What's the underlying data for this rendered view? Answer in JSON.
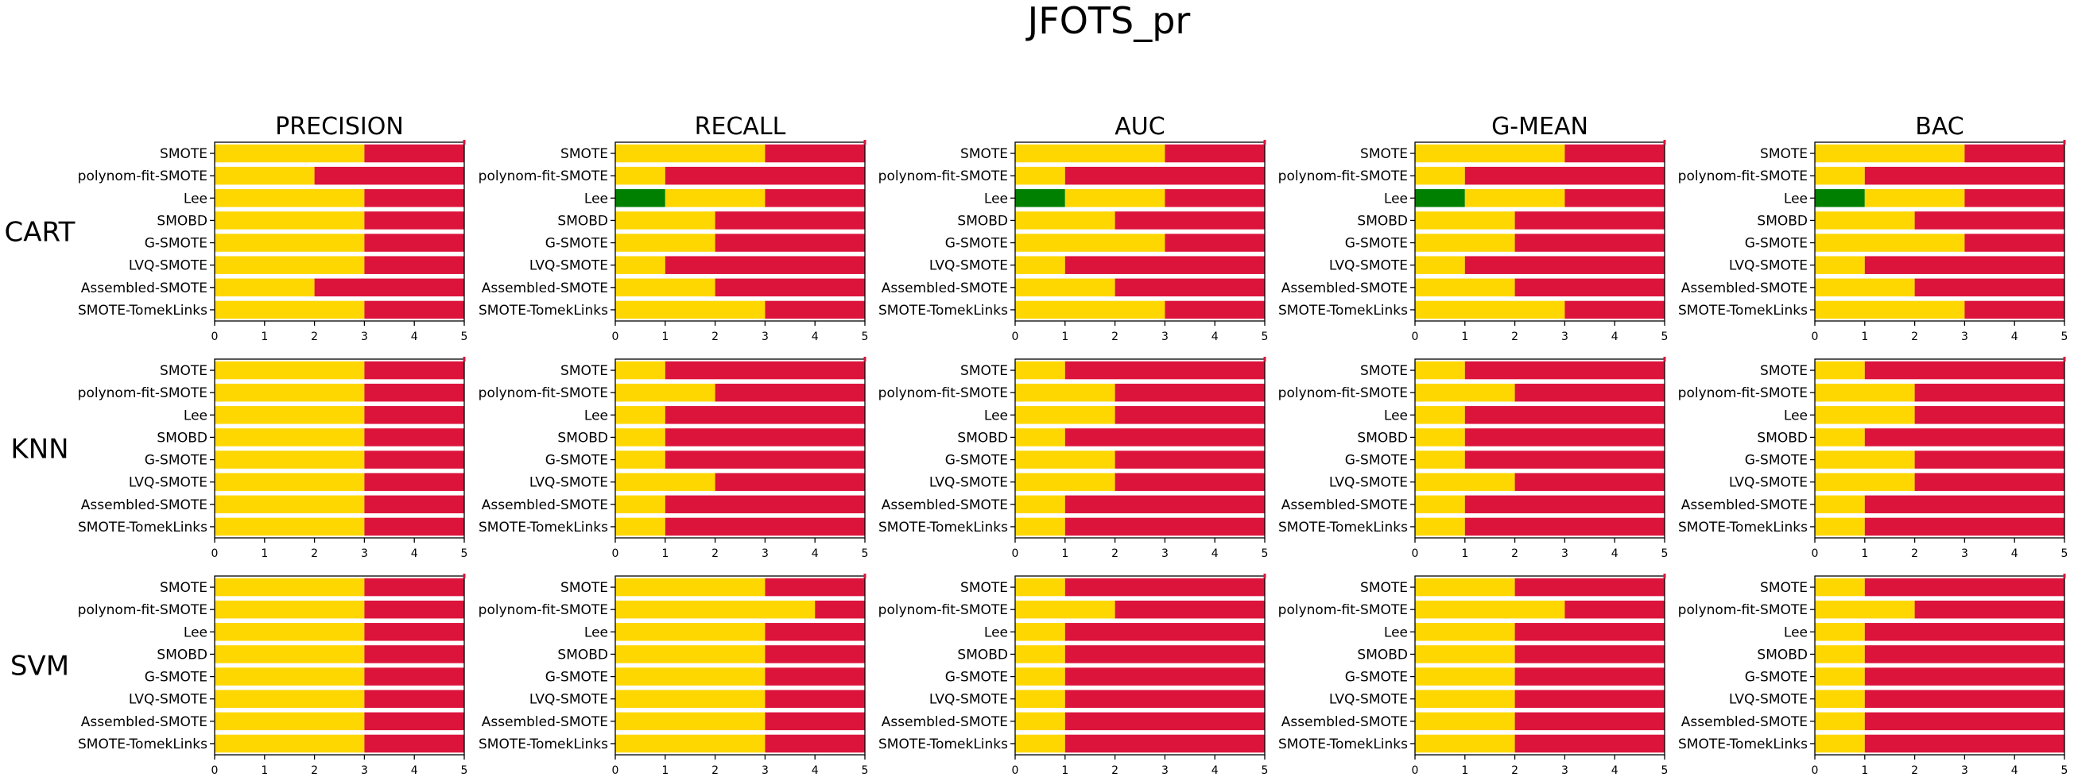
{
  "figure": {
    "title": "JFOTS_pr",
    "columns": [
      "PRECISION",
      "RECALL",
      "AUC",
      "G-MEAN",
      "BAC"
    ],
    "rows": [
      "CART",
      "KNN",
      "SVM"
    ],
    "methods": [
      "SMOTE",
      "polynom-fit-SMOTE",
      "Lee",
      "SMOBD",
      "G-SMOTE",
      "LVQ-SMOTE",
      "Assembled-SMOTE",
      "SMOTE-TomekLinks"
    ],
    "xticks": [
      "0",
      "1",
      "2",
      "3",
      "4",
      "5"
    ],
    "colors": {
      "green": "#008000",
      "gold": "#FFD700",
      "crimson": "#DC143C"
    }
  },
  "chart_data": [
    {
      "type": "bar",
      "orientation": "horizontal",
      "stacked": true,
      "row": "CART",
      "title": "PRECISION",
      "categories": [
        "SMOTE",
        "polynom-fit-SMOTE",
        "Lee",
        "SMOBD",
        "G-SMOTE",
        "LVQ-SMOTE",
        "Assembled-SMOTE",
        "SMOTE-TomekLinks"
      ],
      "series": [
        {
          "color": "#008000",
          "values": [
            0,
            0,
            0,
            0,
            0,
            0,
            0,
            0
          ]
        },
        {
          "color": "#FFD700",
          "values": [
            3,
            2,
            3,
            3,
            3,
            3,
            2,
            3
          ]
        },
        {
          "color": "#DC143C",
          "values": [
            2,
            3,
            2,
            2,
            2,
            2,
            3,
            2
          ]
        }
      ],
      "xlim": [
        0,
        5
      ]
    },
    {
      "type": "bar",
      "orientation": "horizontal",
      "stacked": true,
      "row": "CART",
      "title": "RECALL",
      "categories": [
        "SMOTE",
        "polynom-fit-SMOTE",
        "Lee",
        "SMOBD",
        "G-SMOTE",
        "LVQ-SMOTE",
        "Assembled-SMOTE",
        "SMOTE-TomekLinks"
      ],
      "series": [
        {
          "color": "#008000",
          "values": [
            0,
            0,
            1,
            0,
            0,
            0,
            0,
            0
          ]
        },
        {
          "color": "#FFD700",
          "values": [
            3,
            1,
            2,
            2,
            2,
            1,
            2,
            3
          ]
        },
        {
          "color": "#DC143C",
          "values": [
            2,
            4,
            2,
            3,
            3,
            4,
            3,
            2
          ]
        }
      ],
      "xlim": [
        0,
        5
      ]
    },
    {
      "type": "bar",
      "orientation": "horizontal",
      "stacked": true,
      "row": "CART",
      "title": "AUC",
      "categories": [
        "SMOTE",
        "polynom-fit-SMOTE",
        "Lee",
        "SMOBD",
        "G-SMOTE",
        "LVQ-SMOTE",
        "Assembled-SMOTE",
        "SMOTE-TomekLinks"
      ],
      "series": [
        {
          "color": "#008000",
          "values": [
            0,
            0,
            1,
            0,
            0,
            0,
            0,
            0
          ]
        },
        {
          "color": "#FFD700",
          "values": [
            3,
            1,
            2,
            2,
            3,
            1,
            2,
            3
          ]
        },
        {
          "color": "#DC143C",
          "values": [
            2,
            4,
            2,
            3,
            2,
            4,
            3,
            2
          ]
        }
      ],
      "xlim": [
        0,
        5
      ]
    },
    {
      "type": "bar",
      "orientation": "horizontal",
      "stacked": true,
      "row": "CART",
      "title": "G-MEAN",
      "categories": [
        "SMOTE",
        "polynom-fit-SMOTE",
        "Lee",
        "SMOBD",
        "G-SMOTE",
        "LVQ-SMOTE",
        "Assembled-SMOTE",
        "SMOTE-TomekLinks"
      ],
      "series": [
        {
          "color": "#008000",
          "values": [
            0,
            0,
            1,
            0,
            0,
            0,
            0,
            0
          ]
        },
        {
          "color": "#FFD700",
          "values": [
            3,
            1,
            2,
            2,
            2,
            1,
            2,
            3
          ]
        },
        {
          "color": "#DC143C",
          "values": [
            2,
            4,
            2,
            3,
            3,
            4,
            3,
            2
          ]
        }
      ],
      "xlim": [
        0,
        5
      ]
    },
    {
      "type": "bar",
      "orientation": "horizontal",
      "stacked": true,
      "row": "CART",
      "title": "BAC",
      "categories": [
        "SMOTE",
        "polynom-fit-SMOTE",
        "Lee",
        "SMOBD",
        "G-SMOTE",
        "LVQ-SMOTE",
        "Assembled-SMOTE",
        "SMOTE-TomekLinks"
      ],
      "series": [
        {
          "color": "#008000",
          "values": [
            0,
            0,
            1,
            0,
            0,
            0,
            0,
            0
          ]
        },
        {
          "color": "#FFD700",
          "values": [
            3,
            1,
            2,
            2,
            3,
            1,
            2,
            3
          ]
        },
        {
          "color": "#DC143C",
          "values": [
            2,
            4,
            2,
            3,
            2,
            4,
            3,
            2
          ]
        }
      ],
      "xlim": [
        0,
        5
      ]
    },
    {
      "type": "bar",
      "orientation": "horizontal",
      "stacked": true,
      "row": "KNN",
      "title": "PRECISION",
      "categories": [
        "SMOTE",
        "polynom-fit-SMOTE",
        "Lee",
        "SMOBD",
        "G-SMOTE",
        "LVQ-SMOTE",
        "Assembled-SMOTE",
        "SMOTE-TomekLinks"
      ],
      "series": [
        {
          "color": "#008000",
          "values": [
            0,
            0,
            0,
            0,
            0,
            0,
            0,
            0
          ]
        },
        {
          "color": "#FFD700",
          "values": [
            3,
            3,
            3,
            3,
            3,
            3,
            3,
            3
          ]
        },
        {
          "color": "#DC143C",
          "values": [
            2,
            2,
            2,
            2,
            2,
            2,
            2,
            2
          ]
        }
      ],
      "xlim": [
        0,
        5
      ]
    },
    {
      "type": "bar",
      "orientation": "horizontal",
      "stacked": true,
      "row": "KNN",
      "title": "RECALL",
      "categories": [
        "SMOTE",
        "polynom-fit-SMOTE",
        "Lee",
        "SMOBD",
        "G-SMOTE",
        "LVQ-SMOTE",
        "Assembled-SMOTE",
        "SMOTE-TomekLinks"
      ],
      "series": [
        {
          "color": "#008000",
          "values": [
            0,
            0,
            0,
            0,
            0,
            0,
            0,
            0
          ]
        },
        {
          "color": "#FFD700",
          "values": [
            1,
            2,
            1,
            1,
            1,
            2,
            1,
            1
          ]
        },
        {
          "color": "#DC143C",
          "values": [
            4,
            3,
            4,
            4,
            4,
            3,
            4,
            4
          ]
        }
      ],
      "xlim": [
        0,
        5
      ]
    },
    {
      "type": "bar",
      "orientation": "horizontal",
      "stacked": true,
      "row": "KNN",
      "title": "AUC",
      "categories": [
        "SMOTE",
        "polynom-fit-SMOTE",
        "Lee",
        "SMOBD",
        "G-SMOTE",
        "LVQ-SMOTE",
        "Assembled-SMOTE",
        "SMOTE-TomekLinks"
      ],
      "series": [
        {
          "color": "#008000",
          "values": [
            0,
            0,
            0,
            0,
            0,
            0,
            0,
            0
          ]
        },
        {
          "color": "#FFD700",
          "values": [
            1,
            2,
            2,
            1,
            2,
            2,
            1,
            1
          ]
        },
        {
          "color": "#DC143C",
          "values": [
            4,
            3,
            3,
            4,
            3,
            3,
            4,
            4
          ]
        }
      ],
      "xlim": [
        0,
        5
      ]
    },
    {
      "type": "bar",
      "orientation": "horizontal",
      "stacked": true,
      "row": "KNN",
      "title": "G-MEAN",
      "categories": [
        "SMOTE",
        "polynom-fit-SMOTE",
        "Lee",
        "SMOBD",
        "G-SMOTE",
        "LVQ-SMOTE",
        "Assembled-SMOTE",
        "SMOTE-TomekLinks"
      ],
      "series": [
        {
          "color": "#008000",
          "values": [
            0,
            0,
            0,
            0,
            0,
            0,
            0,
            0
          ]
        },
        {
          "color": "#FFD700",
          "values": [
            1,
            2,
            1,
            1,
            1,
            2,
            1,
            1
          ]
        },
        {
          "color": "#DC143C",
          "values": [
            4,
            3,
            4,
            4,
            4,
            3,
            4,
            4
          ]
        }
      ],
      "xlim": [
        0,
        5
      ]
    },
    {
      "type": "bar",
      "orientation": "horizontal",
      "stacked": true,
      "row": "KNN",
      "title": "BAC",
      "categories": [
        "SMOTE",
        "polynom-fit-SMOTE",
        "Lee",
        "SMOBD",
        "G-SMOTE",
        "LVQ-SMOTE",
        "Assembled-SMOTE",
        "SMOTE-TomekLinks"
      ],
      "series": [
        {
          "color": "#008000",
          "values": [
            0,
            0,
            0,
            0,
            0,
            0,
            0,
            0
          ]
        },
        {
          "color": "#FFD700",
          "values": [
            1,
            2,
            2,
            1,
            2,
            2,
            1,
            1
          ]
        },
        {
          "color": "#DC143C",
          "values": [
            4,
            3,
            3,
            4,
            3,
            3,
            4,
            4
          ]
        }
      ],
      "xlim": [
        0,
        5
      ]
    },
    {
      "type": "bar",
      "orientation": "horizontal",
      "stacked": true,
      "row": "SVM",
      "title": "PRECISION",
      "categories": [
        "SMOTE",
        "polynom-fit-SMOTE",
        "Lee",
        "SMOBD",
        "G-SMOTE",
        "LVQ-SMOTE",
        "Assembled-SMOTE",
        "SMOTE-TomekLinks"
      ],
      "series": [
        {
          "color": "#008000",
          "values": [
            0,
            0,
            0,
            0,
            0,
            0,
            0,
            0
          ]
        },
        {
          "color": "#FFD700",
          "values": [
            3,
            3,
            3,
            3,
            3,
            3,
            3,
            3
          ]
        },
        {
          "color": "#DC143C",
          "values": [
            2,
            2,
            2,
            2,
            2,
            2,
            2,
            2
          ]
        }
      ],
      "xlim": [
        0,
        5
      ]
    },
    {
      "type": "bar",
      "orientation": "horizontal",
      "stacked": true,
      "row": "SVM",
      "title": "RECALL",
      "categories": [
        "SMOTE",
        "polynom-fit-SMOTE",
        "Lee",
        "SMOBD",
        "G-SMOTE",
        "LVQ-SMOTE",
        "Assembled-SMOTE",
        "SMOTE-TomekLinks"
      ],
      "series": [
        {
          "color": "#008000",
          "values": [
            0,
            0,
            0,
            0,
            0,
            0,
            0,
            0
          ]
        },
        {
          "color": "#FFD700",
          "values": [
            3,
            4,
            3,
            3,
            3,
            3,
            3,
            3
          ]
        },
        {
          "color": "#DC143C",
          "values": [
            2,
            1,
            2,
            2,
            2,
            2,
            2,
            2
          ]
        }
      ],
      "xlim": [
        0,
        5
      ]
    },
    {
      "type": "bar",
      "orientation": "horizontal",
      "stacked": true,
      "row": "SVM",
      "title": "AUC",
      "categories": [
        "SMOTE",
        "polynom-fit-SMOTE",
        "Lee",
        "SMOBD",
        "G-SMOTE",
        "LVQ-SMOTE",
        "Assembled-SMOTE",
        "SMOTE-TomekLinks"
      ],
      "series": [
        {
          "color": "#008000",
          "values": [
            0,
            0,
            0,
            0,
            0,
            0,
            0,
            0
          ]
        },
        {
          "color": "#FFD700",
          "values": [
            1,
            2,
            1,
            1,
            1,
            1,
            1,
            1
          ]
        },
        {
          "color": "#DC143C",
          "values": [
            4,
            3,
            4,
            4,
            4,
            4,
            4,
            4
          ]
        }
      ],
      "xlim": [
        0,
        5
      ]
    },
    {
      "type": "bar",
      "orientation": "horizontal",
      "stacked": true,
      "row": "SVM",
      "title": "G-MEAN",
      "categories": [
        "SMOTE",
        "polynom-fit-SMOTE",
        "Lee",
        "SMOBD",
        "G-SMOTE",
        "LVQ-SMOTE",
        "Assembled-SMOTE",
        "SMOTE-TomekLinks"
      ],
      "series": [
        {
          "color": "#008000",
          "values": [
            0,
            0,
            0,
            0,
            0,
            0,
            0,
            0
          ]
        },
        {
          "color": "#FFD700",
          "values": [
            2,
            3,
            2,
            2,
            2,
            2,
            2,
            2
          ]
        },
        {
          "color": "#DC143C",
          "values": [
            3,
            2,
            3,
            3,
            3,
            3,
            3,
            3
          ]
        }
      ],
      "xlim": [
        0,
        5
      ]
    },
    {
      "type": "bar",
      "orientation": "horizontal",
      "stacked": true,
      "row": "SVM",
      "title": "BAC",
      "categories": [
        "SMOTE",
        "polynom-fit-SMOTE",
        "Lee",
        "SMOBD",
        "G-SMOTE",
        "LVQ-SMOTE",
        "Assembled-SMOTE",
        "SMOTE-TomekLinks"
      ],
      "series": [
        {
          "color": "#008000",
          "values": [
            0,
            0,
            0,
            0,
            0,
            0,
            0,
            0
          ]
        },
        {
          "color": "#FFD700",
          "values": [
            1,
            2,
            1,
            1,
            1,
            1,
            1,
            1
          ]
        },
        {
          "color": "#DC143C",
          "values": [
            4,
            3,
            4,
            4,
            4,
            4,
            4,
            4
          ]
        }
      ],
      "xlim": [
        0,
        5
      ]
    }
  ]
}
